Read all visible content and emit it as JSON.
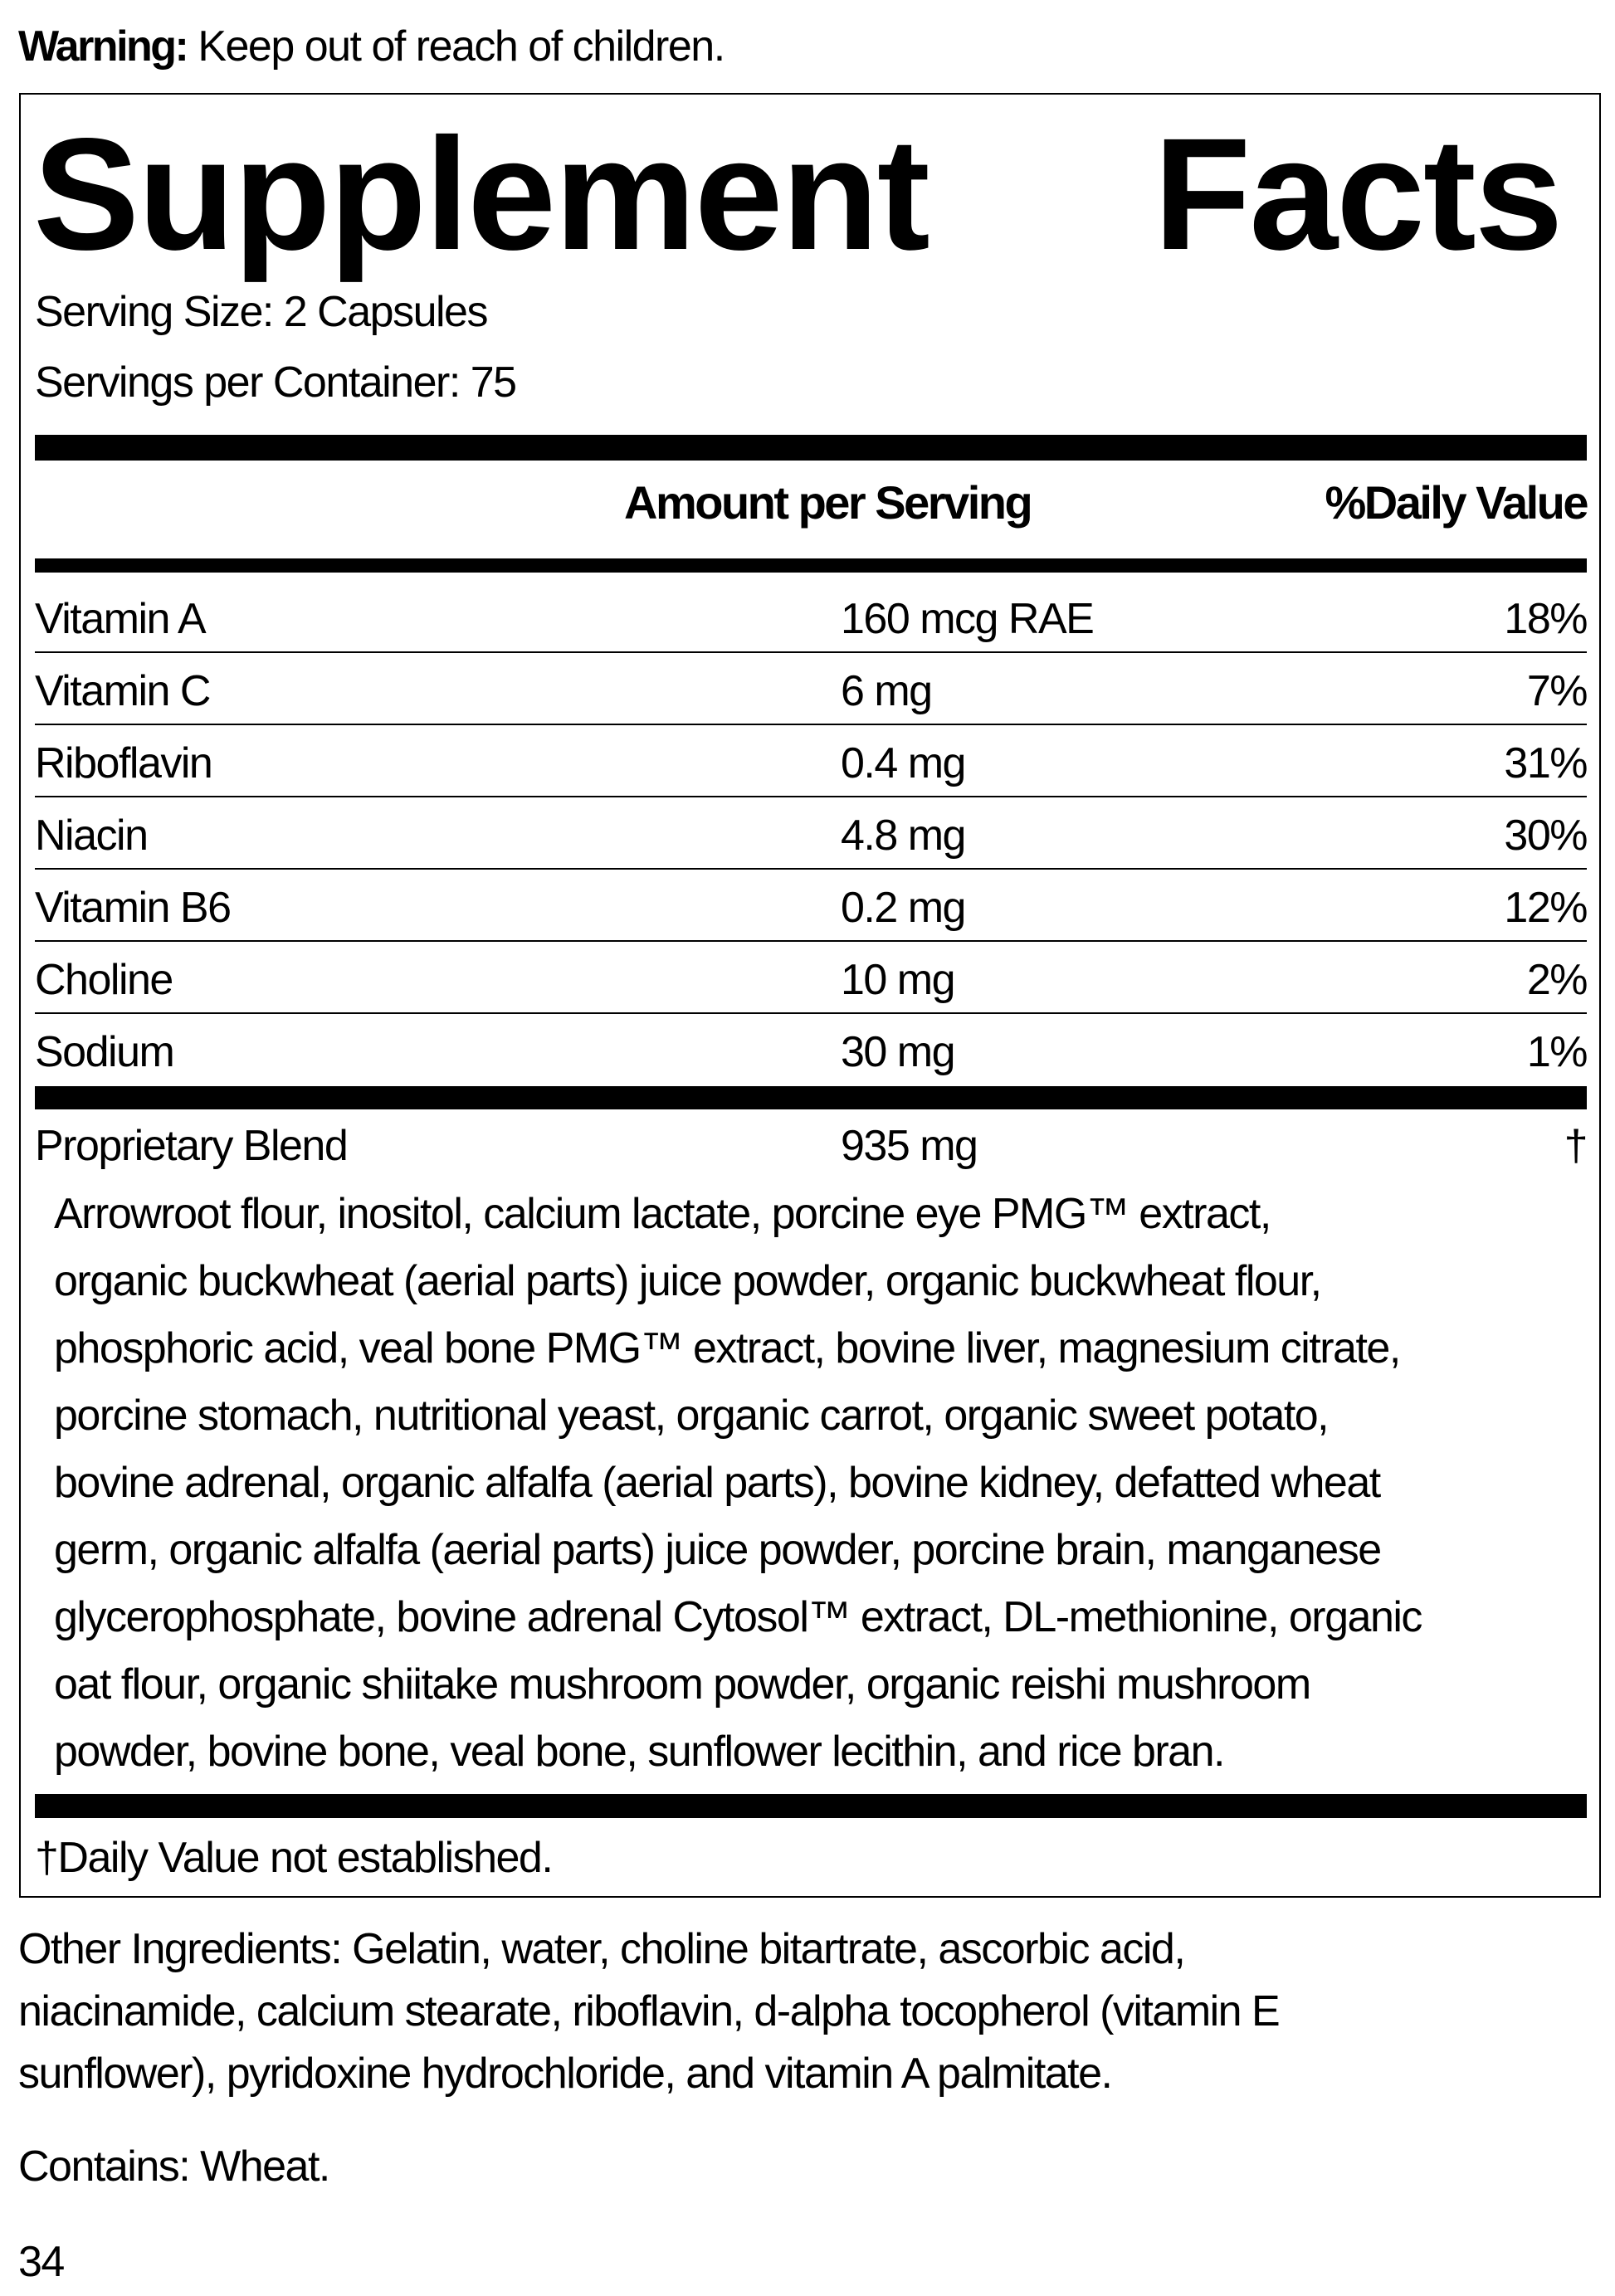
{
  "warning": {
    "label": "Warning:",
    "text": "Keep out of reach of children."
  },
  "facts": {
    "title_word1": "Supplement",
    "title_word2": "Facts",
    "serving_size": "Serving Size: 2 Capsules",
    "servings_per_container": "Servings per Container: 75",
    "header_amount": "Amount per Serving",
    "header_dv": "%Daily Value",
    "rows": [
      {
        "name": "Vitamin A",
        "amount": "160 mcg RAE",
        "dv": "18%"
      },
      {
        "name": "Vitamin C",
        "amount": "6 mg",
        "dv": "7%"
      },
      {
        "name": "Riboflavin",
        "amount": "0.4 mg",
        "dv": "31%"
      },
      {
        "name": "Niacin",
        "amount": "4.8 mg",
        "dv": "30%"
      },
      {
        "name": "Vitamin B6",
        "amount": "0.2 mg",
        "dv": "12%"
      },
      {
        "name": "Choline",
        "amount": "10 mg",
        "dv": "2%"
      },
      {
        "name": "Sodium",
        "amount": "30 mg",
        "dv": "1%"
      }
    ],
    "blend": {
      "name": "Proprietary Blend",
      "amount": "935 mg",
      "dv": "†"
    },
    "blend_ingredients": [
      "Arrowroot flour, inositol, calcium lactate, porcine eye PMG™ extract,",
      "organic buckwheat (aerial parts) juice powder, organic buckwheat flour,",
      "phosphoric acid, veal bone PMG™ extract, bovine liver, magnesium citrate,",
      "porcine stomach, nutritional yeast, organic carrot, organic sweet potato,",
      "bovine adrenal, organic alfalfa (aerial parts), bovine kidney, defatted wheat",
      "germ, organic alfalfa (aerial parts) juice powder, porcine brain, manganese",
      "glycerophosphate, bovine adrenal Cytosol™ extract, DL-methionine, organic",
      "oat flour, organic shiitake mushroom powder, organic reishi mushroom",
      "powder, bovine bone, veal bone, sunflower lecithin, and rice bran."
    ],
    "footnote": "†Daily Value not established."
  },
  "other_ingredients": [
    "Other Ingredients: Gelatin, water, choline bitartrate, ascorbic acid,",
    "niacinamide, calcium stearate, riboflavin, d-alpha tocopherol (vitamin E",
    "sunflower), pyridoxine hydrochloride, and vitamin A palmitate."
  ],
  "contains": "Contains: Wheat.",
  "page_number": "34"
}
